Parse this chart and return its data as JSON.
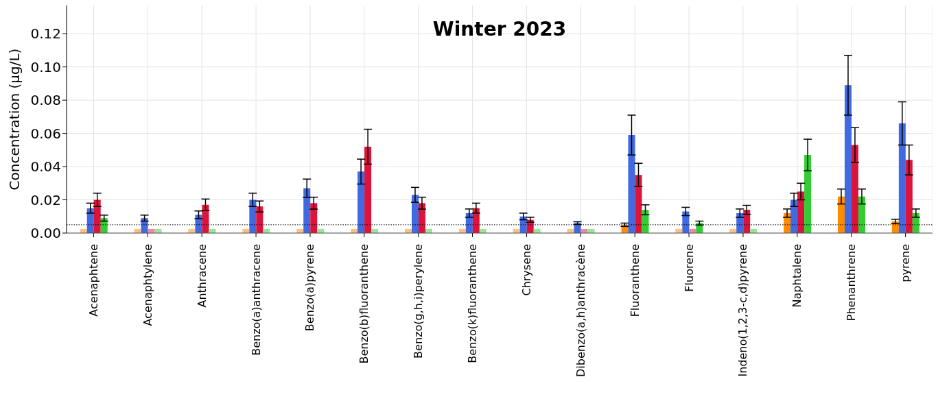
{
  "chart_data": {
    "type": "bar",
    "title": "Winter 2023",
    "ylabel": "Concentration (µg/L)",
    "categories": [
      "Acenaphtene",
      "Acenaphtylene",
      "Anthracene",
      "Benzo(a)anthracene",
      "Benzo(a)pyrene",
      "Benzo(b)fluoranthene",
      "Benzo(g,h,i)perylene",
      "Benzo(k)fluoranthene",
      "Chrysene",
      "Dibenzo(a,h)anthracène",
      "Fluoranthene",
      "Fluorene",
      "Indeno(1,2,3-c,d)pyrene",
      "Naphtalene",
      "Phenanthrene",
      "pyrene"
    ],
    "series": [
      {
        "color": "#ff8c00",
        "colors": [
          "#ffc080",
          "#ffc080",
          "#ffc080",
          "#ffc080",
          "#ffc080",
          "#ffc080",
          "#ffc080",
          "#ffc080",
          "#ffc080",
          "#ffc080",
          "#ff8c00",
          "#ffc080",
          "#ffc080",
          "#ff8c00",
          "#ff8c00",
          "#ff8c00"
        ],
        "values": [
          0.0025,
          0.0025,
          0.0025,
          0.0025,
          0.0025,
          0.0025,
          0.0025,
          0.0025,
          0.0025,
          0.0025,
          0.005,
          0.0025,
          0.0025,
          0.012,
          0.022,
          0.007
        ],
        "errors": [
          0,
          0,
          0,
          0,
          0,
          0,
          0,
          0,
          0,
          0,
          0.001,
          0,
          0,
          0.0025,
          0.0045,
          0.0013
        ]
      },
      {
        "color": "#4169e1",
        "values": [
          0.015,
          0.009,
          0.011,
          0.02,
          0.027,
          0.037,
          0.023,
          0.012,
          0.01,
          0.006,
          0.059,
          0.013,
          0.012,
          0.02,
          0.089,
          0.066
        ],
        "errors": [
          0.003,
          0.0018,
          0.0023,
          0.004,
          0.0055,
          0.0075,
          0.0045,
          0.0025,
          0.002,
          0.0008,
          0.012,
          0.0025,
          0.0025,
          0.004,
          0.018,
          0.013
        ]
      },
      {
        "color": "#dc143c",
        "colors": [
          "#dc143c",
          "#ee8a9e",
          "#dc143c",
          "#dc143c",
          "#dc143c",
          "#dc143c",
          "#dc143c",
          "#dc143c",
          "#dc143c",
          "#ee8a9e",
          "#dc143c",
          "#ee8a9e",
          "#dc143c",
          "#dc143c",
          "#dc143c",
          "#dc143c"
        ],
        "values": [
          0.02,
          0.0025,
          0.017,
          0.016,
          0.018,
          0.052,
          0.018,
          0.015,
          0.008,
          0.0025,
          0.035,
          0.0025,
          0.014,
          0.025,
          0.053,
          0.044
        ],
        "errors": [
          0.004,
          0,
          0.0035,
          0.0033,
          0.0036,
          0.0105,
          0.0036,
          0.003,
          0.0015,
          0,
          0.007,
          0,
          0.0027,
          0.005,
          0.0105,
          0.009
        ]
      },
      {
        "color": "#32cd32",
        "colors": [
          "#32cd32",
          "#98e698",
          "#98e698",
          "#98e698",
          "#98e698",
          "#98e698",
          "#98e698",
          "#98e698",
          "#98e698",
          "#98e698",
          "#32cd32",
          "#32cd32",
          "#98e698",
          "#32cd32",
          "#32cd32",
          "#32cd32"
        ],
        "values": [
          0.009,
          0.0025,
          0.0025,
          0.0025,
          0.0025,
          0.0025,
          0.0025,
          0.0025,
          0.0025,
          0.0025,
          0.014,
          0.006,
          0.0025,
          0.047,
          0.022,
          0.012
        ],
        "errors": [
          0.0018,
          0,
          0,
          0,
          0,
          0,
          0,
          0,
          0,
          0,
          0.003,
          0.0012,
          0,
          0.0095,
          0.0045,
          0.0025
        ]
      }
    ],
    "ylim": [
      0,
      0.137
    ],
    "yticks": [
      {
        "value": 0,
        "label": "0.00"
      },
      {
        "value": 0.02,
        "label": "0.02"
      },
      {
        "value": 0.04,
        "label": "0.04"
      },
      {
        "value": 0.06,
        "label": "0.06"
      },
      {
        "value": 0.08,
        "label": "0.08"
      },
      {
        "value": 0.1,
        "label": "0.10"
      },
      {
        "value": 0.12,
        "label": "0.12"
      }
    ],
    "ref_lines": [
      {
        "axis": "y",
        "value": 0.005,
        "label": null,
        "color": "#000000",
        "line_style": "dotted"
      }
    ],
    "grid": true,
    "legend": false
  }
}
